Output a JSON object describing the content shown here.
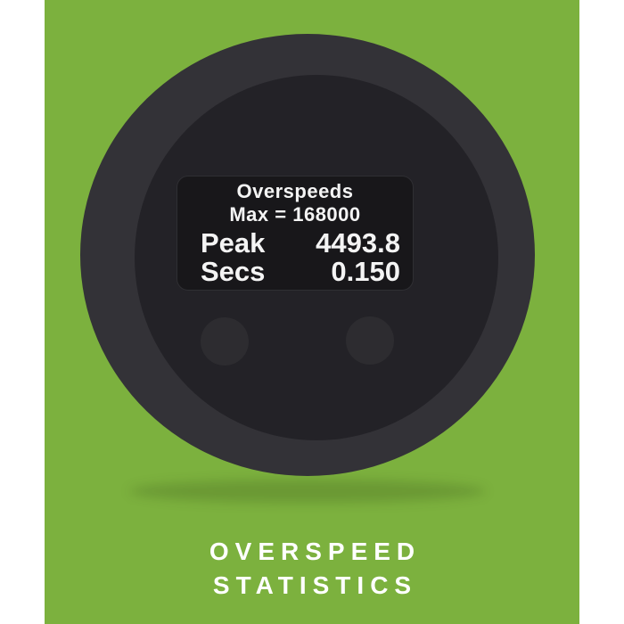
{
  "page": {
    "margin_color": "#ffffff",
    "panel_color": "#7CB13E"
  },
  "gauge": {
    "bezel_color": "#333237",
    "face_color": "#232227",
    "display": {
      "background": "#18171a",
      "text_color": "#f4f4f4",
      "title": "Overspeeds",
      "max_line": "Max = 168000",
      "rows": [
        {
          "label": "Peak",
          "value": "4493.8"
        },
        {
          "label": "Secs",
          "value": "0.150"
        }
      ]
    },
    "buttons": [
      {
        "name": "left-button"
      },
      {
        "name": "right-button"
      }
    ]
  },
  "caption": {
    "line1": "OVERSPEED",
    "line2": "STATISTICS",
    "color": "#ffffff"
  }
}
